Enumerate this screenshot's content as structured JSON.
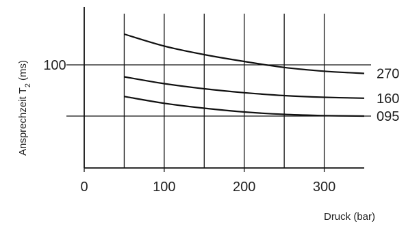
{
  "chart_data": {
    "type": "line",
    "title": "",
    "xlabel": "Druck (bar)",
    "ylabel_main": "Ansprechzeit T",
    "ylabel_sub": "2",
    "ylabel_unit": " (ms)",
    "xlim": [
      0,
      350
    ],
    "ylim_ticks": [
      {
        "label": "100",
        "value": 100
      }
    ],
    "x_ticks": [
      0,
      100,
      200,
      300
    ],
    "x_tick_labels": [
      "0",
      "100",
      "200",
      "300"
    ],
    "x_gridlines": [
      50,
      100,
      150,
      200,
      250,
      300
    ],
    "y_gridlines": [
      100,
      70
    ],
    "grid": true,
    "legend": "right",
    "series": [
      {
        "name": "270",
        "x": [
          50,
          100,
          150,
          200,
          250,
          300,
          350
        ],
        "y": [
          118,
          111,
          106,
          102,
          98.5,
          96.3,
          95
        ]
      },
      {
        "name": "160",
        "x": [
          50,
          100,
          150,
          200,
          250,
          300,
          350
        ],
        "y": [
          93,
          89,
          86,
          83.7,
          82,
          81,
          80.5
        ]
      },
      {
        "name": "095",
        "x": [
          50,
          100,
          150,
          200,
          250,
          300,
          350
        ],
        "y": [
          81.5,
          77.5,
          74.6,
          72.4,
          71,
          70.3,
          70
        ]
      }
    ]
  }
}
